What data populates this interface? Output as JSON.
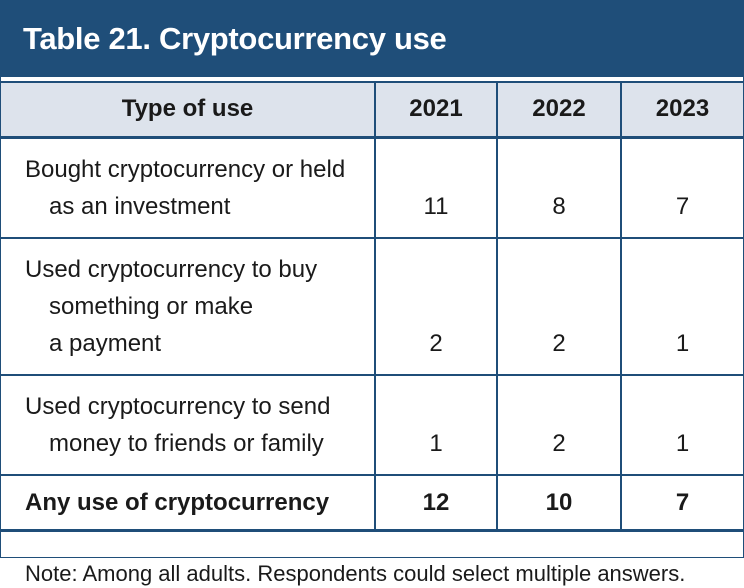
{
  "title": "Table 21. Cryptocurrency use",
  "table": {
    "headers": [
      "Type of use",
      "2021",
      "2022",
      "2023"
    ],
    "rows": [
      {
        "label_lines": [
          "Bought cryptocurrency or held",
          "as an investment"
        ],
        "values": [
          "11",
          "8",
          "7"
        ]
      },
      {
        "label_lines": [
          "Used cryptocurrency to buy",
          "something or make",
          "a payment"
        ],
        "values": [
          "2",
          "2",
          "1"
        ]
      },
      {
        "label_lines": [
          "Used cryptocurrency to send",
          "money to friends or family"
        ],
        "values": [
          "1",
          "2",
          "1"
        ]
      }
    ],
    "total": {
      "label": "Any use of cryptocurrency",
      "values": [
        "12",
        "10",
        "7"
      ]
    }
  },
  "note": "Note: Among all adults. Respondents could select multiple answers.",
  "colors": {
    "header_band": "#1f4e79",
    "column_header_bg": "#dde3ec",
    "rule": "#1f4e79"
  }
}
